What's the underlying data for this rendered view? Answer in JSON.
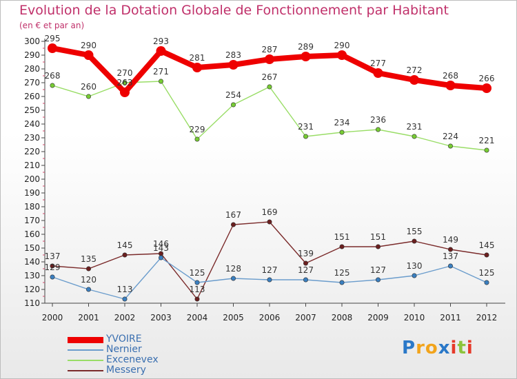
{
  "chart_data": {
    "type": "line",
    "title": "Evolution de la Dotation Globale de Fonctionnement par Habitant",
    "subtitle": "(en € et par an)",
    "xlabel": "",
    "ylabel": "",
    "categories": [
      "2000",
      "2001",
      "2002",
      "2003",
      "2004",
      "2005",
      "2006",
      "2007",
      "2008",
      "2009",
      "2010",
      "2011",
      "2012"
    ],
    "ylim": [
      110,
      300
    ],
    "yticks": [
      "110",
      "120",
      "130",
      "140",
      "150",
      "160",
      "170",
      "180",
      "190",
      "200",
      "210",
      "220",
      "230",
      "240",
      "250",
      "260",
      "270",
      "280",
      "290",
      "300"
    ],
    "grid": false,
    "legend_position": "bottom-left",
    "series": [
      {
        "name": "YVOIRE",
        "color": "#ee0000",
        "marker": "#ee0000",
        "values": [
          295,
          290,
          263,
          293,
          281,
          283,
          287,
          289,
          290,
          277,
          272,
          268,
          266
        ],
        "labels": [
          "295",
          "290",
          "263",
          "293",
          "281",
          "283",
          "287",
          "289",
          "290",
          "277",
          "272",
          "268",
          "266"
        ]
      },
      {
        "name": "Nernier",
        "color": "#6a9ccc",
        "marker": "#3a7fc0",
        "values": [
          129,
          120,
          113,
          143,
          125,
          128,
          127,
          127,
          125,
          127,
          130,
          137,
          125
        ],
        "labels": [
          "129",
          "120",
          "113",
          "143",
          "125",
          "128",
          "127",
          "127",
          "125",
          "127",
          "130",
          "137",
          "125"
        ]
      },
      {
        "name": "Excenevex",
        "color": "#99dd66",
        "marker": "#77cc33",
        "values": [
          268,
          260,
          270,
          271,
          229,
          254,
          267,
          231,
          234,
          236,
          231,
          224,
          221
        ],
        "labels": [
          "268",
          "260",
          "270",
          "271",
          "229",
          "254",
          "267",
          "231",
          "234",
          "236",
          "231",
          "224",
          "221"
        ]
      },
      {
        "name": "Messery",
        "color": "#7a2a2a",
        "marker": "#6b1f1f",
        "values": [
          137,
          135,
          145,
          146,
          113,
          167,
          169,
          139,
          151,
          151,
          155,
          149,
          145
        ],
        "labels": [
          "137",
          "135",
          "145",
          "146",
          "113",
          "167",
          "169",
          "139",
          "151",
          "151",
          "155",
          "149",
          "145"
        ]
      }
    ]
  },
  "logo": {
    "letters": [
      "P",
      "r",
      "o",
      "x",
      "i",
      "t",
      "i"
    ],
    "colors": [
      "#2a78c8",
      "#f2a41c",
      "#f2a41c",
      "#2a78c8",
      "#e63a2a",
      "#8cc43c",
      "#e63a2a"
    ]
  }
}
